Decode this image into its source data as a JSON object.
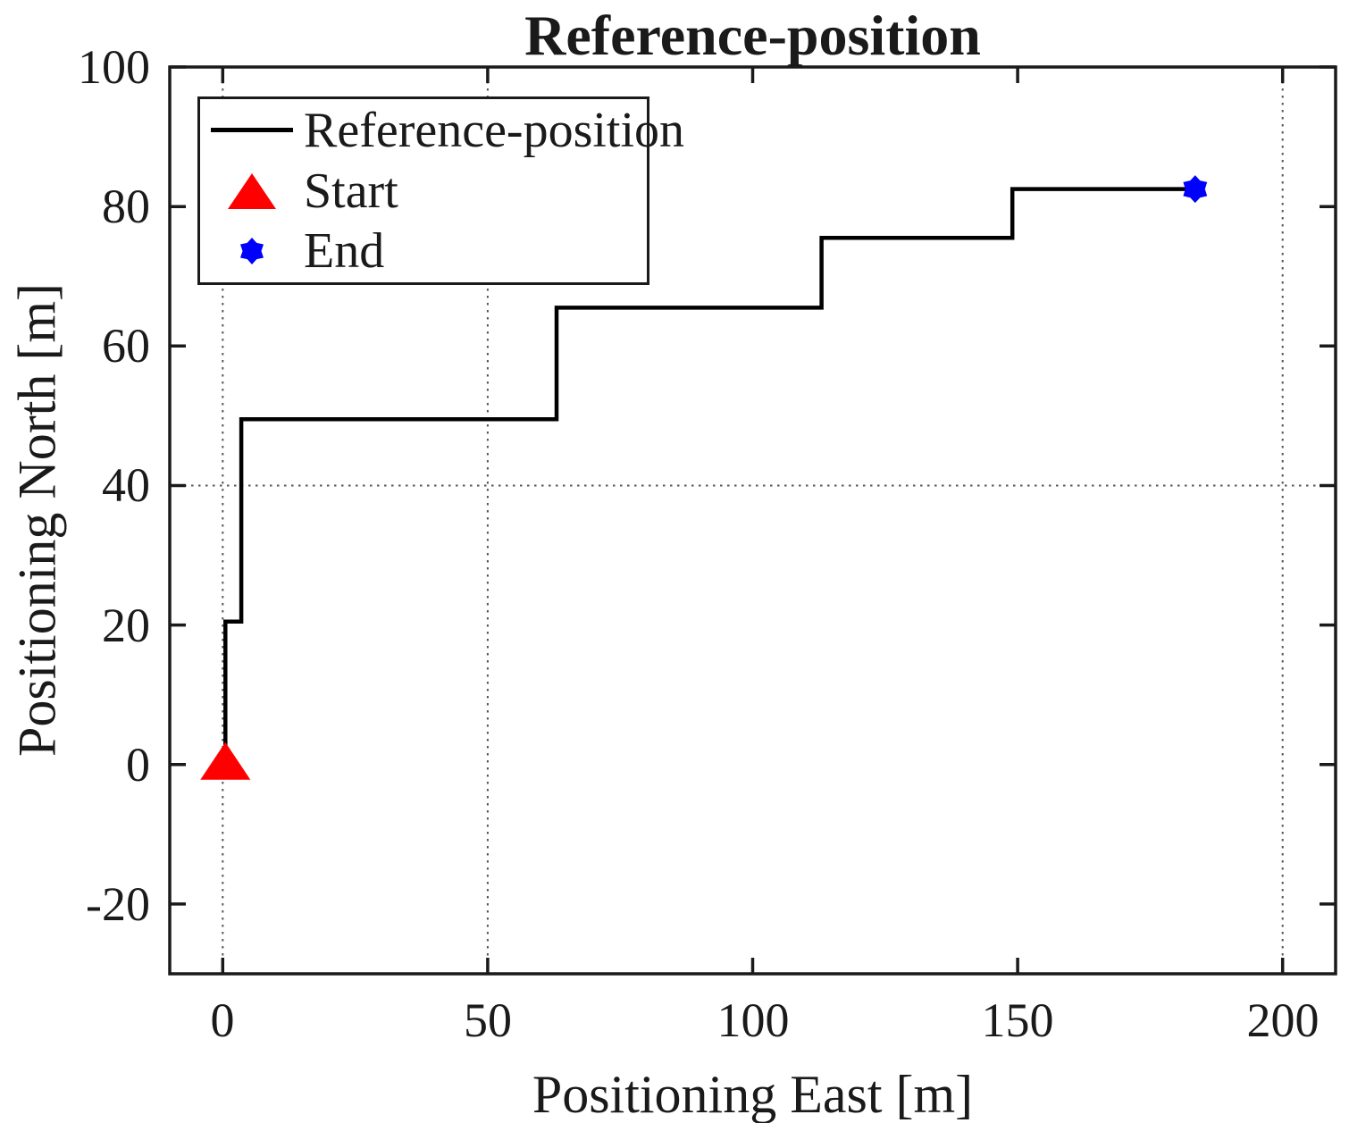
{
  "chart_data": {
    "type": "line",
    "title": "Reference-position",
    "xlabel": "Positioning East [m]",
    "ylabel": "Positioning North [m]",
    "xlim": [
      -10,
      210
    ],
    "ylim": [
      -30,
      100
    ],
    "x_ticks": [
      "0",
      "50",
      "100",
      "150",
      "200"
    ],
    "x_tick_values": [
      0,
      50,
      100,
      150,
      200
    ],
    "y_ticks": [
      "-20",
      "0",
      "20",
      "40",
      "60",
      "80",
      "100"
    ],
    "y_tick_values": [
      -20,
      0,
      20,
      40,
      60,
      80,
      100
    ],
    "grid_on": true,
    "grid_style": "dotted",
    "grid_vertical_x": [
      0,
      50,
      200
    ],
    "grid_horizontal_y": [
      40
    ],
    "axis_color": "#1a1a1a",
    "grid_color": "#555555",
    "series": [
      {
        "name": "Reference-position",
        "color": "#000000",
        "points": [
          [
            0.5,
            0
          ],
          [
            0.5,
            20.5
          ],
          [
            3.5,
            20.5
          ],
          [
            3.5,
            49.5
          ],
          [
            63,
            49.5
          ],
          [
            63,
            65.5
          ],
          [
            113,
            65.5
          ],
          [
            113,
            75.5
          ],
          [
            149,
            75.5
          ],
          [
            149,
            82.5
          ],
          [
            183.5,
            82.5
          ]
        ]
      }
    ],
    "markers": [
      {
        "name": "Start",
        "shape": "triangle-up",
        "color": "#ff0000",
        "point": [
          0.5,
          0
        ]
      },
      {
        "name": "End",
        "shape": "hexagram",
        "color": "#0000ff",
        "point": [
          183.5,
          82.5
        ]
      }
    ],
    "legend": {
      "position": "northwest",
      "entries": [
        {
          "label": "Reference-position",
          "swatch": "line",
          "color": "#000000"
        },
        {
          "label": "Start",
          "swatch": "triangle-up",
          "color": "#ff0000"
        },
        {
          "label": "End",
          "swatch": "hexagram",
          "color": "#0000ff"
        }
      ]
    }
  }
}
